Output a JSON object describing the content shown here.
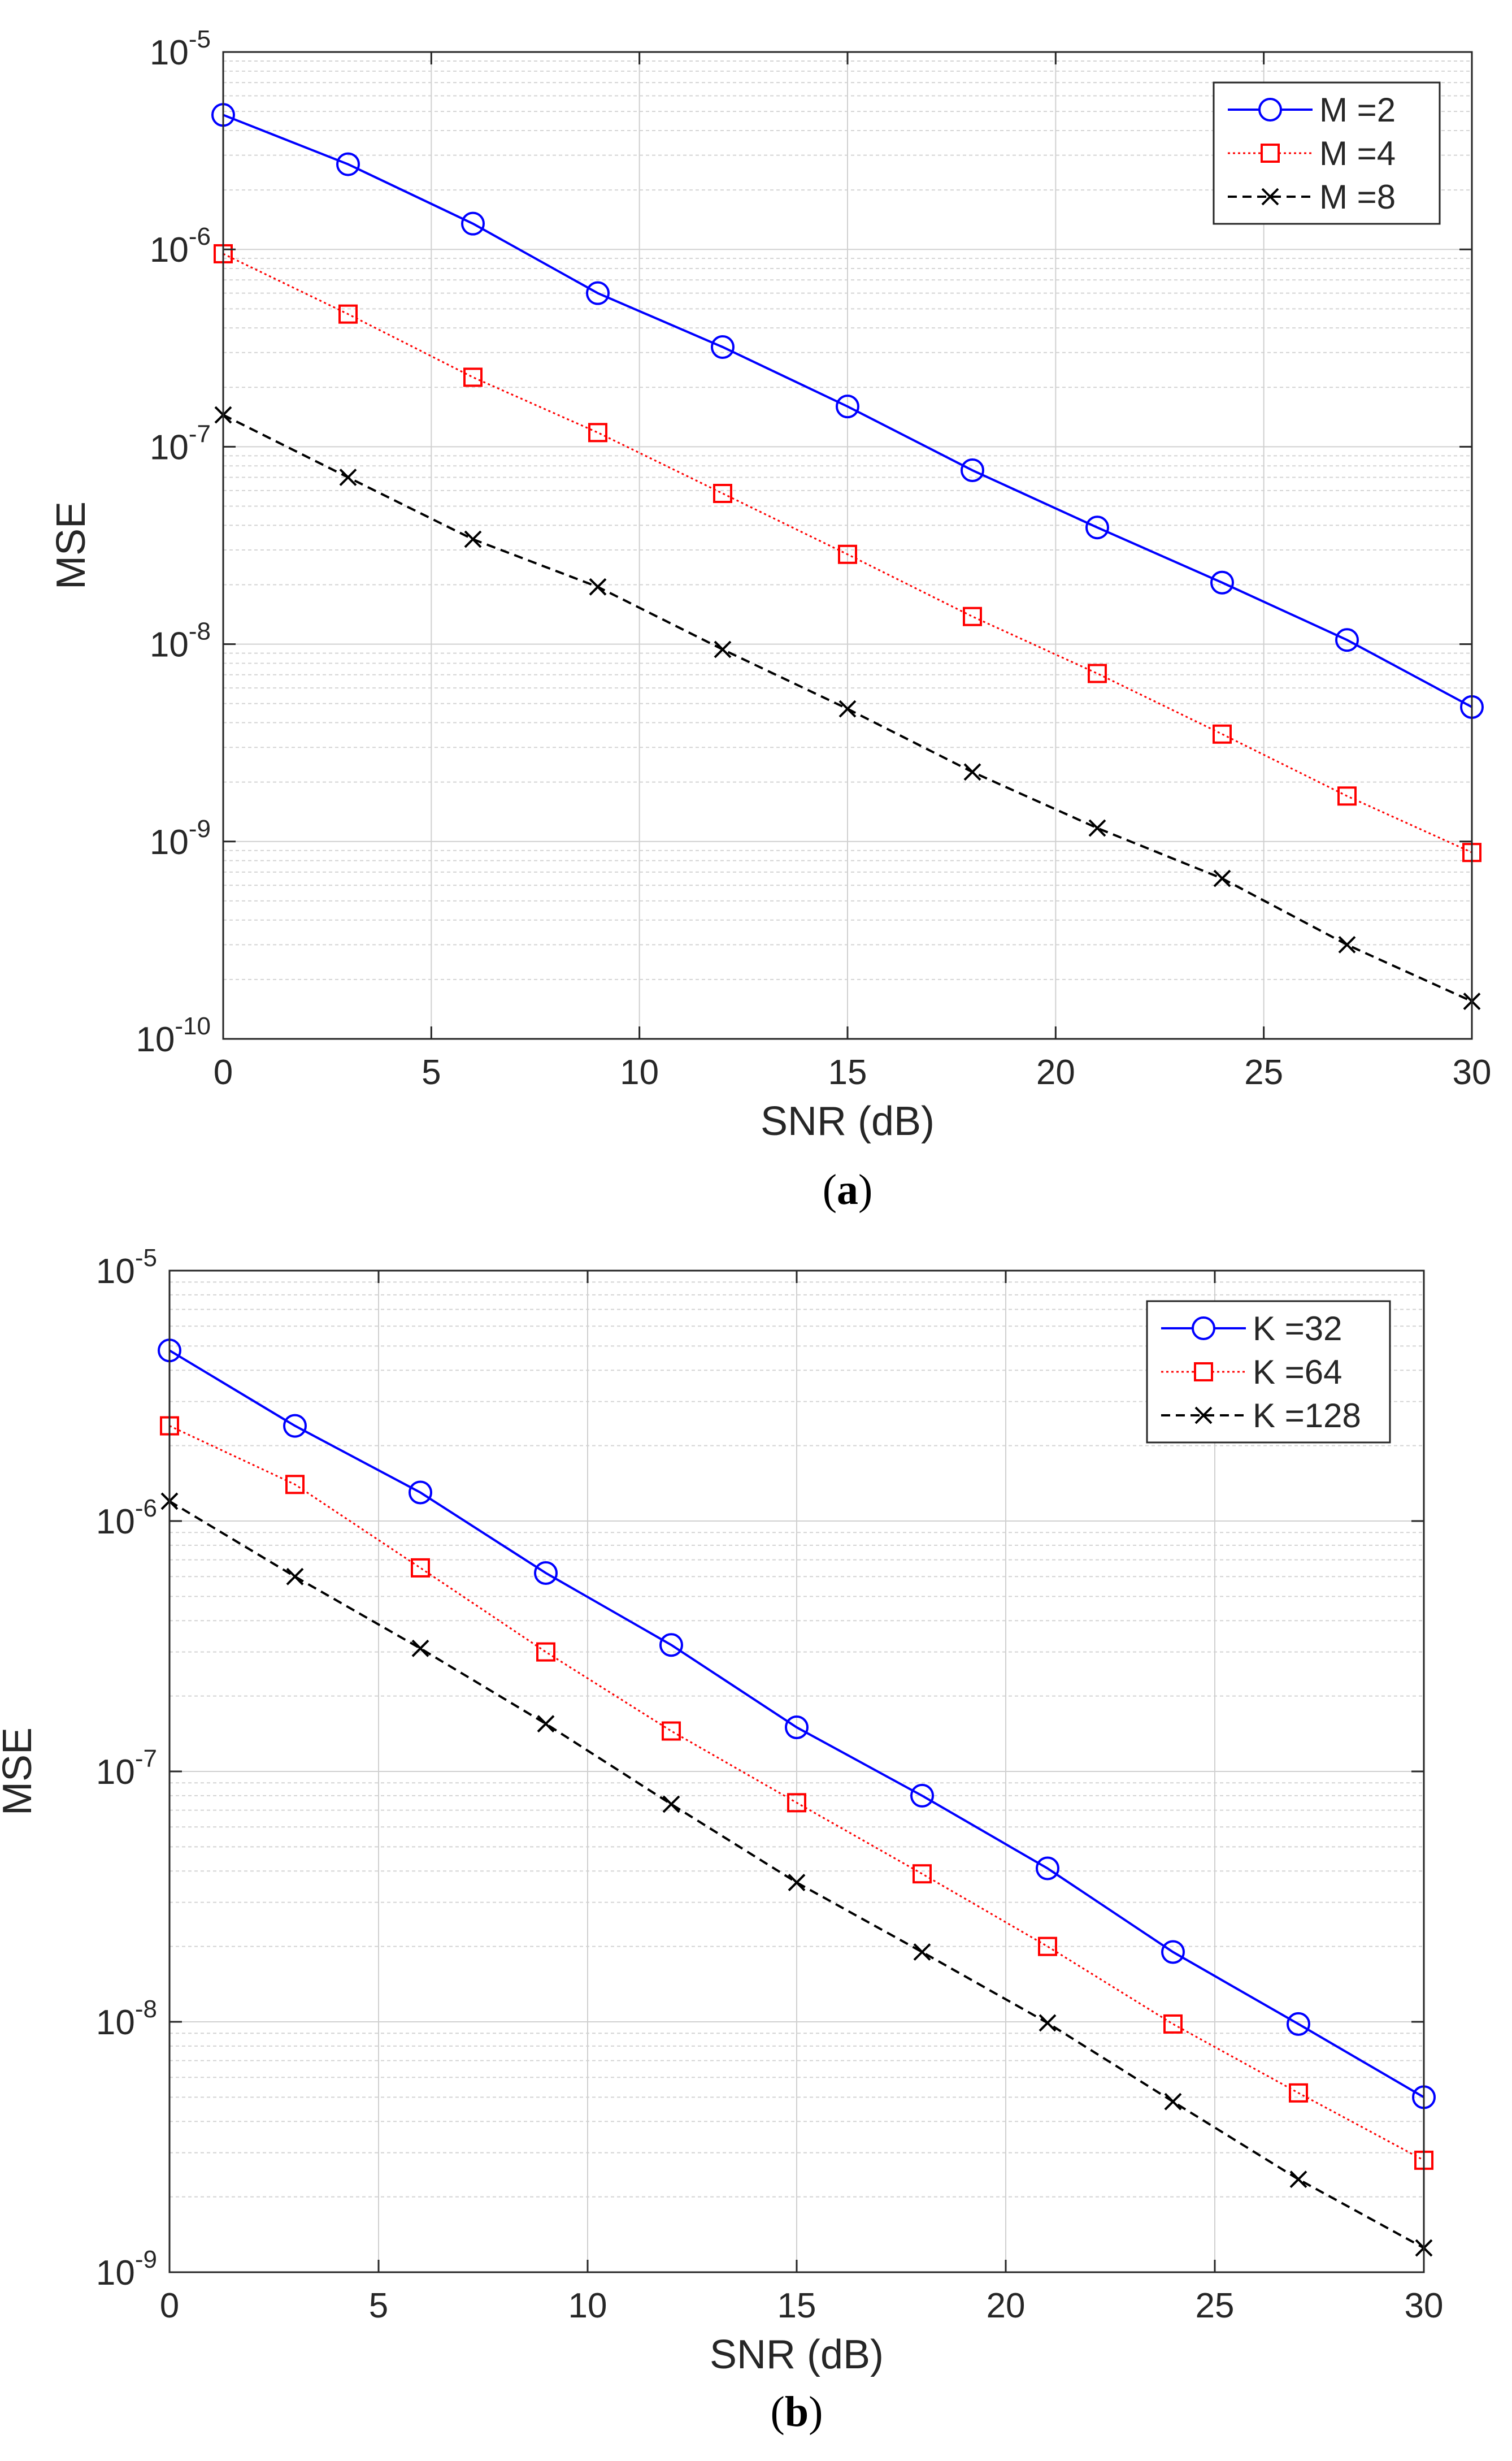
{
  "chart_data": [
    {
      "type": "line",
      "caption": "(a)",
      "xlabel": "SNR (dB)",
      "ylabel": "MSE",
      "yscale": "log",
      "xlim": [
        0,
        30
      ],
      "ylim": [
        1e-10,
        1e-05
      ],
      "xticks": [
        0,
        5,
        10,
        15,
        20,
        25,
        30
      ],
      "yticks": [
        {
          "mant": "10",
          "exp": "-10"
        },
        {
          "mant": "10",
          "exp": "-9"
        },
        {
          "mant": "10",
          "exp": "-8"
        },
        {
          "mant": "10",
          "exp": "-7"
        },
        {
          "mant": "10",
          "exp": "-6"
        },
        {
          "mant": "10",
          "exp": "-5"
        }
      ],
      "grid": true,
      "legend_position": "top-right",
      "x": [
        0,
        3,
        6,
        9,
        12,
        15,
        18,
        21,
        24,
        27,
        30
      ],
      "series": [
        {
          "name": "M =2",
          "color": "#0000ff",
          "marker": "circle",
          "dash": "solid",
          "values": [
            4.8e-06,
            2.7e-06,
            1.35e-06,
            6e-07,
            3.2e-07,
            1.6e-07,
            7.6e-08,
            3.9e-08,
            2.05e-08,
            1.05e-08,
            4.8e-09
          ]
        },
        {
          "name": "M =4",
          "color": "#ff0000",
          "marker": "square",
          "dash": "dotted",
          "values": [
            9.5e-07,
            4.7e-07,
            2.25e-07,
            1.18e-07,
            5.8e-08,
            2.85e-08,
            1.38e-08,
            7.1e-09,
            3.5e-09,
            1.7e-09,
            8.8e-10
          ]
        },
        {
          "name": "M =8",
          "color": "#000000",
          "marker": "x",
          "dash": "dashed",
          "values": [
            1.45e-07,
            7e-08,
            3.4e-08,
            1.95e-08,
            9.4e-09,
            4.7e-09,
            2.25e-09,
            1.17e-09,
            6.5e-10,
            3e-10,
            1.55e-10
          ]
        }
      ]
    },
    {
      "type": "line",
      "caption": "(b)",
      "xlabel": "SNR (dB)",
      "ylabel": "MSE",
      "yscale": "log",
      "xlim": [
        0,
        30
      ],
      "ylim": [
        1e-09,
        1e-05
      ],
      "xticks": [
        0,
        5,
        10,
        15,
        20,
        25,
        30
      ],
      "yticks": [
        {
          "mant": "10",
          "exp": "-9"
        },
        {
          "mant": "10",
          "exp": "-8"
        },
        {
          "mant": "10",
          "exp": "-7"
        },
        {
          "mant": "10",
          "exp": "-6"
        },
        {
          "mant": "10",
          "exp": "-5"
        }
      ],
      "grid": true,
      "legend_position": "top-right",
      "x": [
        0,
        3,
        6,
        9,
        12,
        15,
        18,
        21,
        24,
        27,
        30
      ],
      "series": [
        {
          "name": "K =32",
          "color": "#0000ff",
          "marker": "circle",
          "dash": "solid",
          "values": [
            4.8e-06,
            2.4e-06,
            1.3e-06,
            6.2e-07,
            3.2e-07,
            1.5e-07,
            8e-08,
            4.1e-08,
            1.9e-08,
            9.8e-09,
            5e-09
          ]
        },
        {
          "name": "K =64",
          "color": "#ff0000",
          "marker": "square",
          "dash": "dotted",
          "values": [
            2.4e-06,
            1.4e-06,
            6.5e-07,
            3e-07,
            1.45e-07,
            7.5e-08,
            3.9e-08,
            2e-08,
            9.8e-09,
            5.2e-09,
            2.8e-09
          ]
        },
        {
          "name": "K =128",
          "color": "#000000",
          "marker": "x",
          "dash": "dashed",
          "values": [
            1.2e-06,
            6e-07,
            3.1e-07,
            1.55e-07,
            7.4e-08,
            3.6e-08,
            1.9e-08,
            9.9e-09,
            4.8e-09,
            2.35e-09,
            1.25e-09
          ]
        }
      ]
    }
  ]
}
